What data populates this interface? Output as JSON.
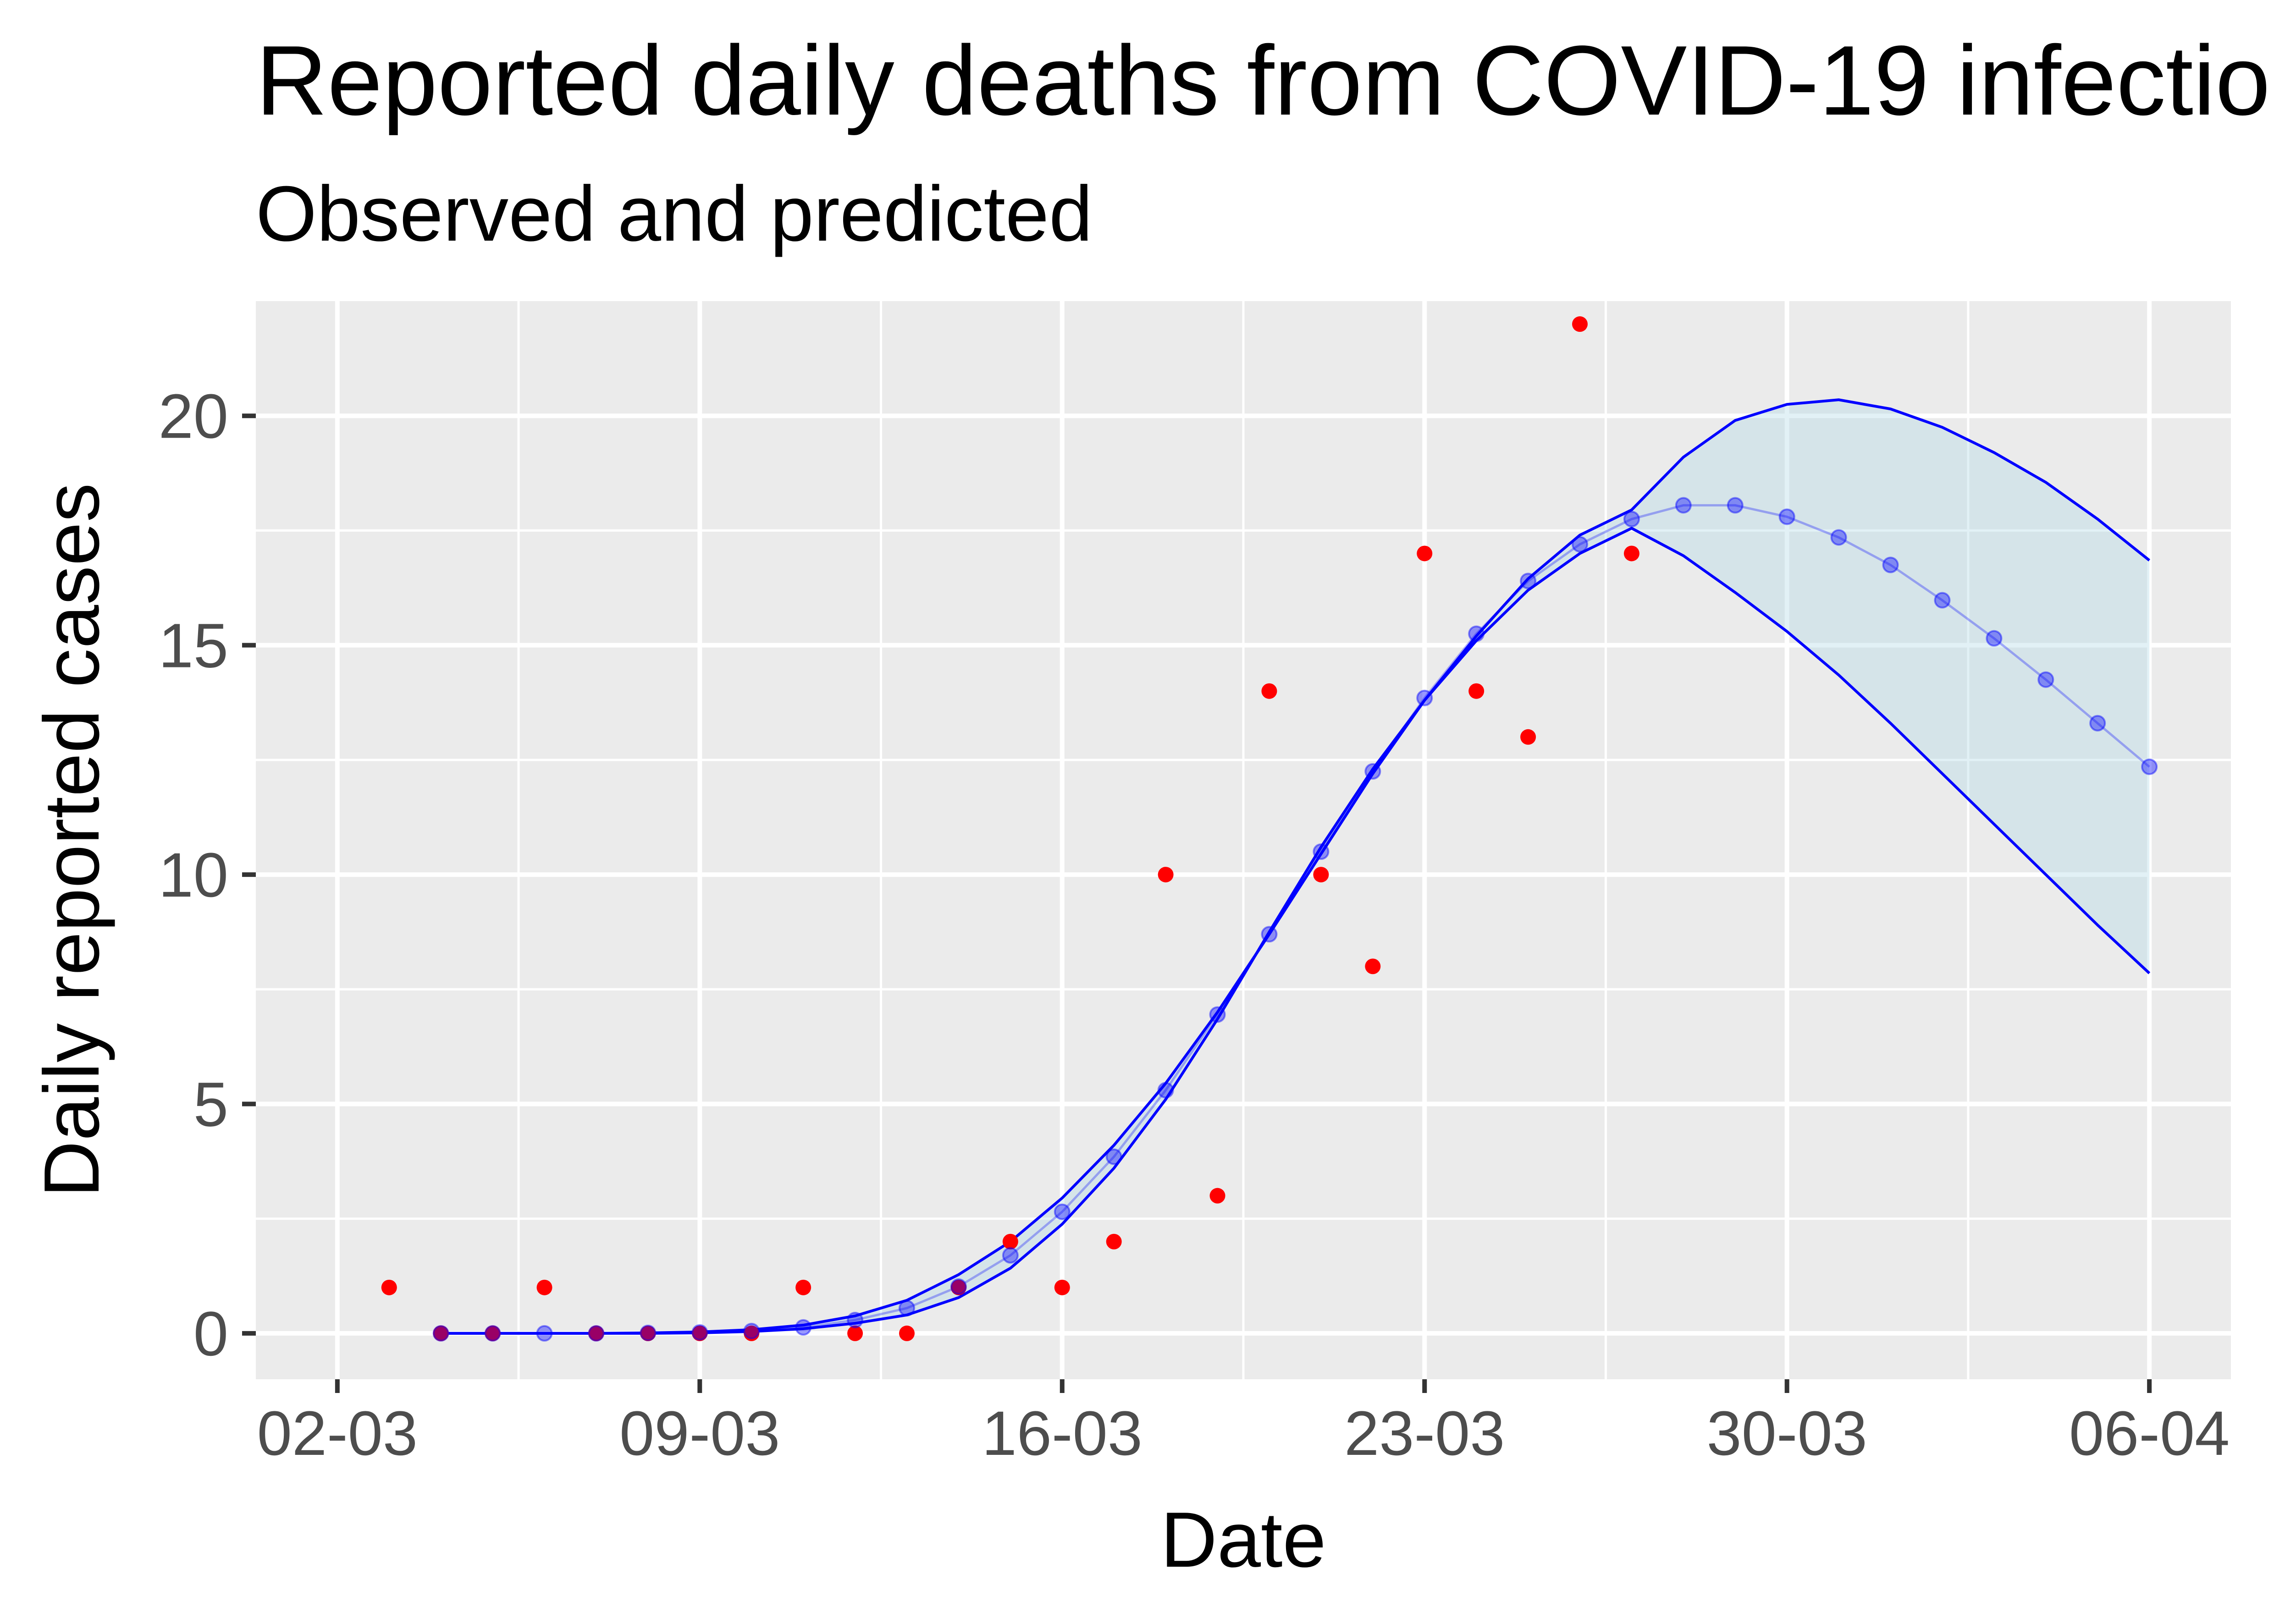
{
  "chart_data": {
    "type": "scatter",
    "title": "Reported daily deaths from COVID-19 infectio",
    "subtitle": "Observed and predicted",
    "xlabel": "Date",
    "ylabel": "Daily reported cases",
    "x_ticks": [
      "02-03",
      "09-03",
      "16-03",
      "23-03",
      "30-03",
      "06-04"
    ],
    "y_ticks": [
      "0",
      "5",
      "10",
      "15",
      "20"
    ],
    "xlim": [
      "2020-03-02",
      "2020-04-06"
    ],
    "ylim": [
      -1,
      22.5
    ],
    "grid": true,
    "colors": {
      "panel": "#ebebeb",
      "grid": "#ffffff",
      "observed": "#ff0000",
      "predicted": "#0000ff",
      "band": "#add8e6"
    },
    "series": [
      {
        "kind": "observed",
        "x": [
          "2020-03-03",
          "2020-03-04",
          "2020-03-05",
          "2020-03-06",
          "2020-03-07",
          "2020-03-08",
          "2020-03-09",
          "2020-03-10",
          "2020-03-11",
          "2020-03-12",
          "2020-03-13",
          "2020-03-14",
          "2020-03-15",
          "2020-03-16",
          "2020-03-17",
          "2020-03-18",
          "2020-03-19",
          "2020-03-20",
          "2020-03-21",
          "2020-03-22",
          "2020-03-23",
          "2020-03-24",
          "2020-03-25",
          "2020-03-26",
          "2020-03-27"
        ],
        "y": [
          1,
          0,
          0,
          1,
          0,
          0,
          0,
          0,
          1,
          0,
          0,
          1,
          2,
          1,
          2,
          10,
          3,
          14,
          10,
          8,
          17,
          14,
          13,
          22,
          17
        ]
      },
      {
        "kind": "fitted",
        "x": [
          "2020-03-04",
          "2020-03-05",
          "2020-03-06",
          "2020-03-07",
          "2020-03-08",
          "2020-03-09",
          "2020-03-10",
          "2020-03-11",
          "2020-03-12",
          "2020-03-13",
          "2020-03-14",
          "2020-03-15",
          "2020-03-16",
          "2020-03-17",
          "2020-03-18",
          "2020-03-19",
          "2020-03-20",
          "2020-03-21",
          "2020-03-22",
          "2020-03-23",
          "2020-03-24",
          "2020-03-25",
          "2020-03-26",
          "2020-03-27",
          "2020-03-28",
          "2020-03-29",
          "2020-03-30",
          "2020-03-31",
          "2020-04-01",
          "2020-04-02",
          "2020-04-03",
          "2020-04-04",
          "2020-04-05",
          "2020-04-06"
        ],
        "y": [
          0,
          0,
          0,
          0,
          0.01,
          0.02,
          0.05,
          0.13,
          0.29,
          0.55,
          1.02,
          1.7,
          2.65,
          3.85,
          5.3,
          6.95,
          8.7,
          10.5,
          12.25,
          13.85,
          15.25,
          16.4,
          17.2,
          17.75,
          18.05,
          18.05,
          17.8,
          17.35,
          16.75,
          15.98,
          15.15,
          14.25,
          13.3,
          12.35
        ]
      },
      {
        "kind": "lower",
        "x": [
          "2020-03-04",
          "2020-03-05",
          "2020-03-06",
          "2020-03-07",
          "2020-03-08",
          "2020-03-09",
          "2020-03-10",
          "2020-03-11",
          "2020-03-12",
          "2020-03-13",
          "2020-03-14",
          "2020-03-15",
          "2020-03-16",
          "2020-03-17",
          "2020-03-18",
          "2020-03-19",
          "2020-03-20",
          "2020-03-21",
          "2020-03-22",
          "2020-03-23",
          "2020-03-24",
          "2020-03-25",
          "2020-03-26",
          "2020-03-27",
          "2020-03-28",
          "2020-03-29",
          "2020-03-30",
          "2020-03-31",
          "2020-04-01",
          "2020-04-02",
          "2020-04-03",
          "2020-04-04",
          "2020-04-05",
          "2020-04-06"
        ],
        "y": [
          0,
          0,
          0,
          0,
          0,
          0.01,
          0.04,
          0.1,
          0.22,
          0.4,
          0.78,
          1.42,
          2.38,
          3.6,
          5.1,
          6.85,
          8.75,
          10.6,
          12.3,
          13.8,
          15.1,
          16.2,
          17.0,
          17.55,
          16.95,
          16.15,
          15.3,
          14.35,
          13.3,
          12.2,
          11.1,
          10.0,
          8.9,
          7.85
        ]
      },
      {
        "kind": "upper",
        "x": [
          "2020-03-04",
          "2020-03-05",
          "2020-03-06",
          "2020-03-07",
          "2020-03-08",
          "2020-03-09",
          "2020-03-10",
          "2020-03-11",
          "2020-03-12",
          "2020-03-13",
          "2020-03-14",
          "2020-03-15",
          "2020-03-16",
          "2020-03-17",
          "2020-03-18",
          "2020-03-19",
          "2020-03-20",
          "2020-03-21",
          "2020-03-22",
          "2020-03-23",
          "2020-03-24",
          "2020-03-25",
          "2020-03-26",
          "2020-03-27",
          "2020-03-28",
          "2020-03-29",
          "2020-03-30",
          "2020-03-31",
          "2020-04-01",
          "2020-04-02",
          "2020-04-03",
          "2020-04-04",
          "2020-04-05",
          "2020-04-06"
        ],
        "y": [
          0,
          0,
          0,
          0,
          0.01,
          0.03,
          0.08,
          0.18,
          0.38,
          0.72,
          1.28,
          2.0,
          2.95,
          4.1,
          5.45,
          7.0,
          8.7,
          10.45,
          12.2,
          13.8,
          15.2,
          16.45,
          17.4,
          17.95,
          19.1,
          19.9,
          20.25,
          20.35,
          20.15,
          19.75,
          19.2,
          18.55,
          17.75,
          16.85
        ]
      }
    ]
  }
}
